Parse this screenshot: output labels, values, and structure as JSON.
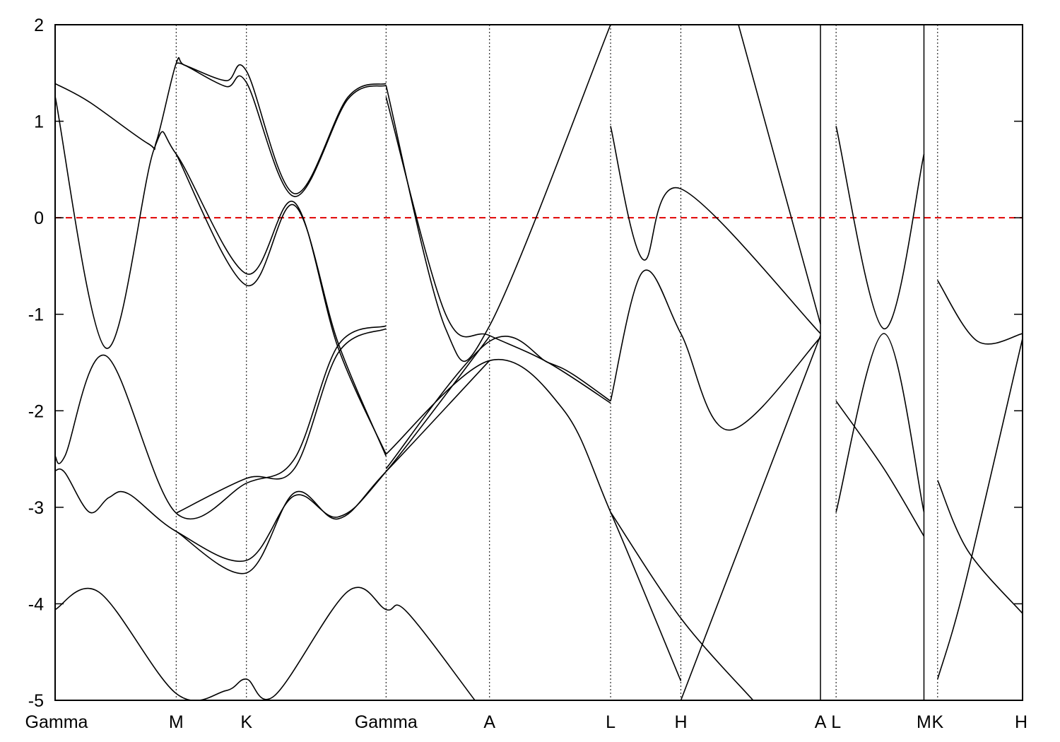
{
  "chart_data": {
    "type": "line",
    "title": "",
    "xlabel": "",
    "ylabel": "",
    "ylim": [
      -5,
      2
    ],
    "yticks": [
      2,
      1,
      0,
      -1,
      -2,
      -3,
      -4,
      -5
    ],
    "ytick_labels": [
      "2",
      "1",
      "0",
      "-1",
      "-2",
      "-3",
      "-4",
      "-5"
    ],
    "xlim": [
      0,
      9.91
    ],
    "kpoints": [
      {
        "label": "Gamma",
        "x": 0
      },
      {
        "label": "M",
        "x": 1.24
      },
      {
        "label": "K",
        "x": 1.96
      },
      {
        "label": "Gamma",
        "x": 3.39
      },
      {
        "label": "A",
        "x": 4.45
      },
      {
        "label": "L",
        "x": 5.69
      },
      {
        "label": "H",
        "x": 6.41
      },
      {
        "label": "A",
        "x": 7.84
      },
      {
        "label": "L",
        "x": 8.0
      },
      {
        "label": "M",
        "x": 8.9
      },
      {
        "label": "K",
        "x": 9.04
      },
      {
        "label": "H",
        "x": 9.91
      }
    ],
    "segment_breaks": [
      7.84,
      8.9
    ],
    "fermi_level": 0,
    "fermi_color": "#e00000",
    "line_color": "#000000",
    "grid": false,
    "legend": "none",
    "series": [
      {
        "values": [
          [
            0,
            1.39
          ],
          [
            0.35,
            1.2
          ],
          [
            0.95,
            0.77
          ],
          [
            1.04,
            0.8
          ],
          [
            1.24,
            1.6
          ],
          [
            1.33,
            1.58
          ],
          [
            1.75,
            1.42
          ],
          [
            1.96,
            1.52
          ],
          [
            2.45,
            0.25
          ],
          [
            3.0,
            1.25
          ],
          [
            3.39,
            1.39
          ]
        ]
      },
      {
        "values": [
          [
            1.24,
            1.6
          ],
          [
            1.33,
            1.58
          ],
          [
            1.75,
            1.36
          ],
          [
            1.96,
            1.4
          ],
          [
            2.45,
            0.22
          ],
          [
            3.0,
            1.23
          ],
          [
            3.39,
            1.37
          ]
        ]
      },
      {
        "values": [
          [
            0,
            1.26
          ],
          [
            0.52,
            -1.35
          ],
          [
            1.01,
            0.7
          ],
          [
            1.24,
            0.66
          ],
          [
            1.96,
            -0.58
          ],
          [
            2.45,
            0.16
          ],
          [
            2.9,
            -1.35
          ],
          [
            3.39,
            -2.45
          ]
        ]
      },
      {
        "values": [
          [
            1.24,
            0.66
          ],
          [
            1.96,
            -0.7
          ],
          [
            2.45,
            0.13
          ],
          [
            2.9,
            -1.3
          ],
          [
            3.39,
            -2.47
          ]
        ]
      },
      {
        "values": [
          [
            0,
            -2.47
          ],
          [
            0.1,
            -2.47
          ],
          [
            0.52,
            -1.43
          ],
          [
            1.24,
            -3.06
          ],
          [
            1.96,
            -2.75
          ],
          [
            2.45,
            -2.5
          ],
          [
            2.9,
            -1.32
          ],
          [
            3.39,
            -1.12
          ]
        ]
      },
      {
        "values": [
          [
            1.24,
            -3.06
          ],
          [
            1.96,
            -2.7
          ],
          [
            2.45,
            -2.6
          ],
          [
            2.9,
            -1.4
          ],
          [
            3.39,
            -1.15
          ]
        ]
      },
      {
        "values": [
          [
            0,
            -2.62
          ],
          [
            0.1,
            -2.64
          ],
          [
            0.35,
            -3.05
          ],
          [
            0.55,
            -2.9
          ],
          [
            0.75,
            -2.86
          ],
          [
            1.24,
            -3.25
          ],
          [
            1.96,
            -3.55
          ],
          [
            2.45,
            -2.88
          ],
          [
            2.9,
            -3.1
          ],
          [
            3.39,
            -2.63
          ],
          [
            4.45,
            -1.23
          ]
        ]
      },
      {
        "values": [
          [
            1.24,
            -3.25
          ],
          [
            1.96,
            -3.68
          ],
          [
            2.45,
            -2.85
          ],
          [
            2.9,
            -3.12
          ],
          [
            3.39,
            -2.63
          ],
          [
            4.45,
            -1.48
          ]
        ]
      },
      {
        "values": [
          [
            0,
            -4.06
          ],
          [
            0.45,
            -3.88
          ],
          [
            1.24,
            -4.93
          ],
          [
            1.75,
            -4.9
          ],
          [
            1.96,
            -4.78
          ],
          [
            2.25,
            -4.95
          ],
          [
            3.0,
            -3.87
          ],
          [
            3.39,
            -4.06
          ],
          [
            3.6,
            -4.08
          ],
          [
            4.3,
            -5.0
          ]
        ]
      },
      {
        "values": [
          [
            3.39,
            1.37
          ],
          [
            4.0,
            -1.15
          ],
          [
            4.45,
            -1.12
          ],
          [
            5.69,
            2.0
          ]
        ]
      },
      {
        "values": [
          [
            3.39,
            1.25
          ],
          [
            4.0,
            -1.0
          ],
          [
            4.45,
            -1.22
          ],
          [
            5.05,
            -1.5
          ],
          [
            5.69,
            -1.92
          ]
        ]
      },
      {
        "values": [
          [
            3.39,
            -2.45
          ],
          [
            4.45,
            -1.48
          ],
          [
            5.2,
            -1.98
          ],
          [
            5.69,
            -3.05
          ],
          [
            6.41,
            -4.8
          ]
        ]
      },
      {
        "values": [
          [
            3.39,
            -2.6
          ],
          [
            4.45,
            -1.28
          ],
          [
            5.05,
            -1.5
          ],
          [
            5.3,
            -1.62
          ],
          [
            5.69,
            -1.9
          ]
        ]
      },
      {
        "values": [
          [
            5.69,
            0.95
          ],
          [
            6.02,
            -0.43
          ],
          [
            6.41,
            0.3
          ],
          [
            7.84,
            -1.2
          ]
        ]
      },
      {
        "values": [
          [
            5.69,
            -1.9
          ],
          [
            6.02,
            -0.56
          ],
          [
            6.41,
            -1.2
          ],
          [
            6.9,
            -2.2
          ],
          [
            7.84,
            -1.24
          ]
        ]
      },
      {
        "values": [
          [
            5.69,
            -3.05
          ],
          [
            6.41,
            -4.15
          ],
          [
            7.15,
            -5.0
          ]
        ]
      },
      {
        "values": [
          [
            6.41,
            -5.0
          ],
          [
            7.84,
            -1.22
          ]
        ]
      },
      {
        "values": [
          [
            7.0,
            2.0
          ],
          [
            7.84,
            -1.1
          ]
        ]
      },
      {
        "values": [
          [
            8.0,
            0.95
          ],
          [
            8.49,
            -1.15
          ],
          [
            8.9,
            0.66
          ]
        ]
      },
      {
        "values": [
          [
            8.0,
            -1.9
          ],
          [
            8.49,
            -2.6
          ],
          [
            8.9,
            -3.3
          ]
        ]
      },
      {
        "values": [
          [
            8.0,
            -3.05
          ],
          [
            8.49,
            -1.2
          ],
          [
            8.9,
            -3.05
          ]
        ]
      },
      {
        "values": [
          [
            9.04,
            -0.65
          ],
          [
            9.45,
            -1.28
          ],
          [
            9.91,
            -1.2
          ]
        ]
      },
      {
        "values": [
          [
            9.04,
            -2.72
          ],
          [
            9.35,
            -3.45
          ],
          [
            9.91,
            -4.1
          ]
        ]
      },
      {
        "values": [
          [
            9.04,
            -4.78
          ],
          [
            9.32,
            -3.8
          ],
          [
            9.91,
            -1.25
          ]
        ]
      }
    ]
  }
}
